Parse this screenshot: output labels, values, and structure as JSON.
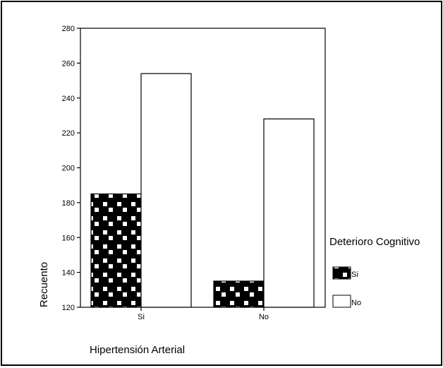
{
  "chart_data": {
    "type": "bar",
    "xlabel": "Hipertensión Arterial",
    "ylabel": "Recuento",
    "categories": [
      "Si",
      "No"
    ],
    "ylim": [
      120,
      280
    ],
    "yticks": [
      120,
      140,
      160,
      180,
      200,
      220,
      240,
      260,
      280
    ],
    "legend": {
      "title": "Deterioro Cognitivo",
      "placement": "right"
    },
    "series": [
      {
        "name": "Si",
        "values": [
          185,
          135
        ],
        "fill": "pattern-black-checker"
      },
      {
        "name": "No",
        "values": [
          254,
          228
        ],
        "fill": "#ffffff"
      }
    ]
  }
}
